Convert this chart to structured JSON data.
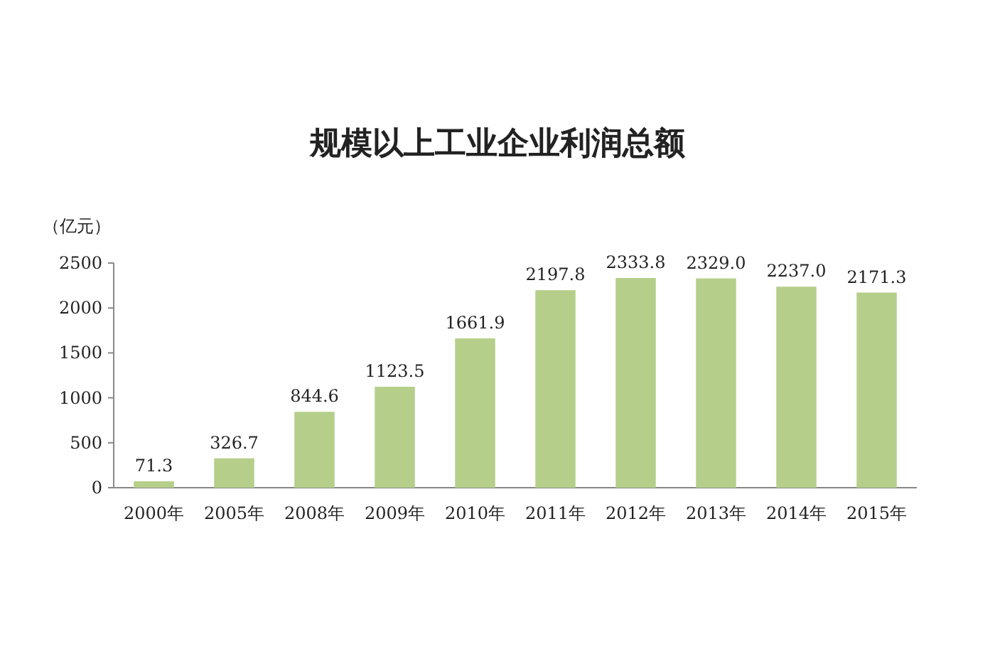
{
  "chart_data": {
    "type": "bar",
    "title": "规模以上工业企业利润总额",
    "ylabel": "（亿元）",
    "categories": [
      "2000年",
      "2005年",
      "2008年",
      "2009年",
      "2010年",
      "2011年",
      "2012年",
      "2013年",
      "2014年",
      "2015年"
    ],
    "values": [
      71.3,
      326.7,
      844.6,
      1123.5,
      1661.9,
      2197.8,
      2333.8,
      2329.0,
      2237.0,
      2171.3
    ],
    "value_labels": [
      "71.3",
      "326.7",
      "844.6",
      "1123.5",
      "1661.9",
      "2197.8",
      "2333.8",
      "2329.0",
      "2237.0",
      "2171.3"
    ],
    "color": "#b5cf8a",
    "ylim": [
      0,
      2500
    ],
    "yticks": [
      0,
      500,
      1000,
      1500,
      2000,
      2500
    ],
    "grid": false
  }
}
